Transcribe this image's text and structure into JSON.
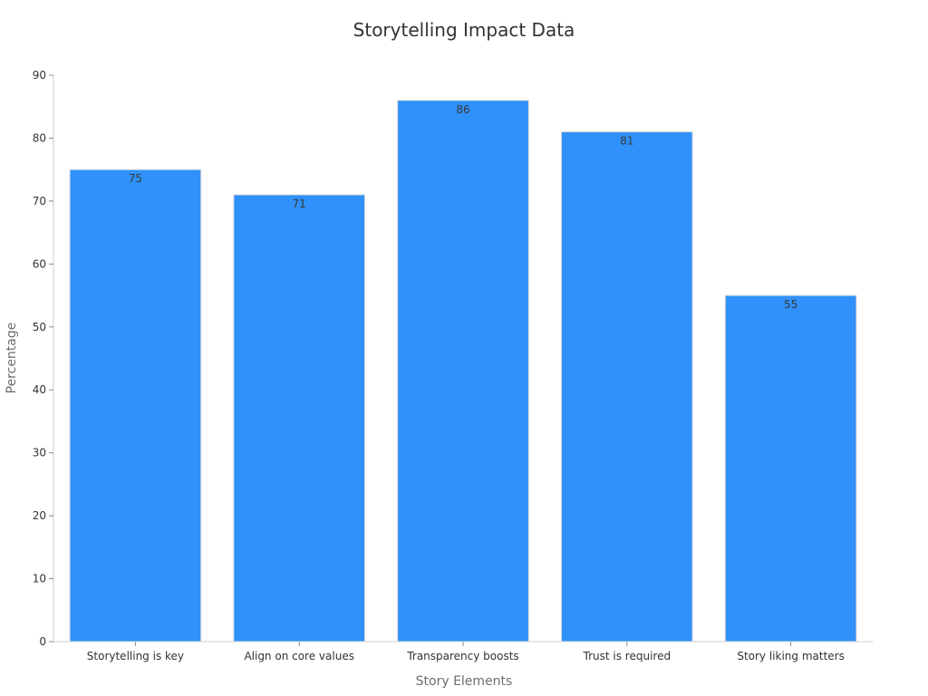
{
  "chart_data": {
    "type": "bar",
    "title": "Storytelling Impact Data",
    "xlabel": "Story Elements",
    "ylabel": "Percentage",
    "categories": [
      "Storytelling is key",
      "Align on core values",
      "Transparency boosts",
      "Trust is required",
      "Story liking matters"
    ],
    "values": [
      75,
      71,
      86,
      81,
      55
    ],
    "ylim": [
      0,
      90
    ],
    "yticks": [
      0,
      10,
      20,
      30,
      40,
      50,
      60,
      70,
      80,
      90
    ],
    "grid": false,
    "legend": "none",
    "bar_color": "#2f91f9",
    "bar_edge_color": "#d9d9d9",
    "data_labels": true
  }
}
